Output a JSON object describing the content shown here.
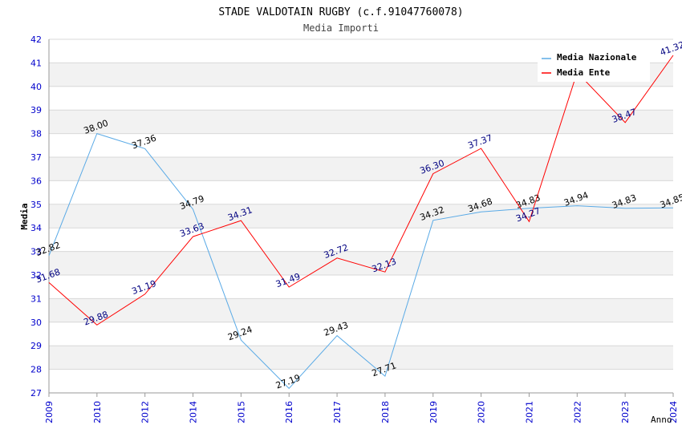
{
  "chart_data": {
    "type": "line",
    "title": "STADE VALDOTAIN RUGBY (c.f.91047760078)",
    "subtitle": "Media Importi",
    "xlabel": "Anno",
    "ylabel": "Media",
    "ylim": [
      27,
      42
    ],
    "yticks": [
      27,
      28,
      29,
      30,
      31,
      32,
      33,
      34,
      35,
      36,
      37,
      38,
      39,
      40,
      41,
      42
    ],
    "categories": [
      "2009",
      "2010",
      "2012",
      "2014",
      "2015",
      "2016",
      "2017",
      "2018",
      "2019",
      "2020",
      "2021",
      "2022",
      "2023",
      "2024"
    ],
    "legend_position": "top-right",
    "series": [
      {
        "name": "Media Nazionale",
        "color": "#5aaae6",
        "label_color": "#000000",
        "values": [
          32.82,
          38.0,
          37.36,
          34.79,
          29.24,
          27.19,
          29.43,
          27.71,
          34.32,
          34.68,
          34.83,
          34.94,
          34.83,
          34.85
        ],
        "labels": [
          "32.82",
          "38.00",
          "37.36",
          "34.79",
          "29.24",
          "27.19",
          "29.43",
          "27.71",
          "34.32",
          "34.68",
          "34.83",
          "34.94",
          "34.83",
          "34.85"
        ]
      },
      {
        "name": "Media Ente",
        "color": "#ff0000",
        "label_color": "#000080",
        "values": [
          31.68,
          29.88,
          31.19,
          33.63,
          34.31,
          31.49,
          32.72,
          32.13,
          36.3,
          37.37,
          34.27,
          40.6,
          38.47,
          41.32
        ],
        "labels": [
          "31.68",
          "29.88",
          "31.19",
          "33.63",
          "34.31",
          "31.49",
          "32.72",
          "32.13",
          "36.30",
          "37.37",
          "34.27",
          "",
          "38.47",
          "41.32"
        ]
      }
    ],
    "colors": {
      "axis_tick_text": "#0000cc",
      "band_fill": "#f2f2f2",
      "grid": "#d8d8d8",
      "axis": "#999999",
      "title": "#000000"
    }
  }
}
